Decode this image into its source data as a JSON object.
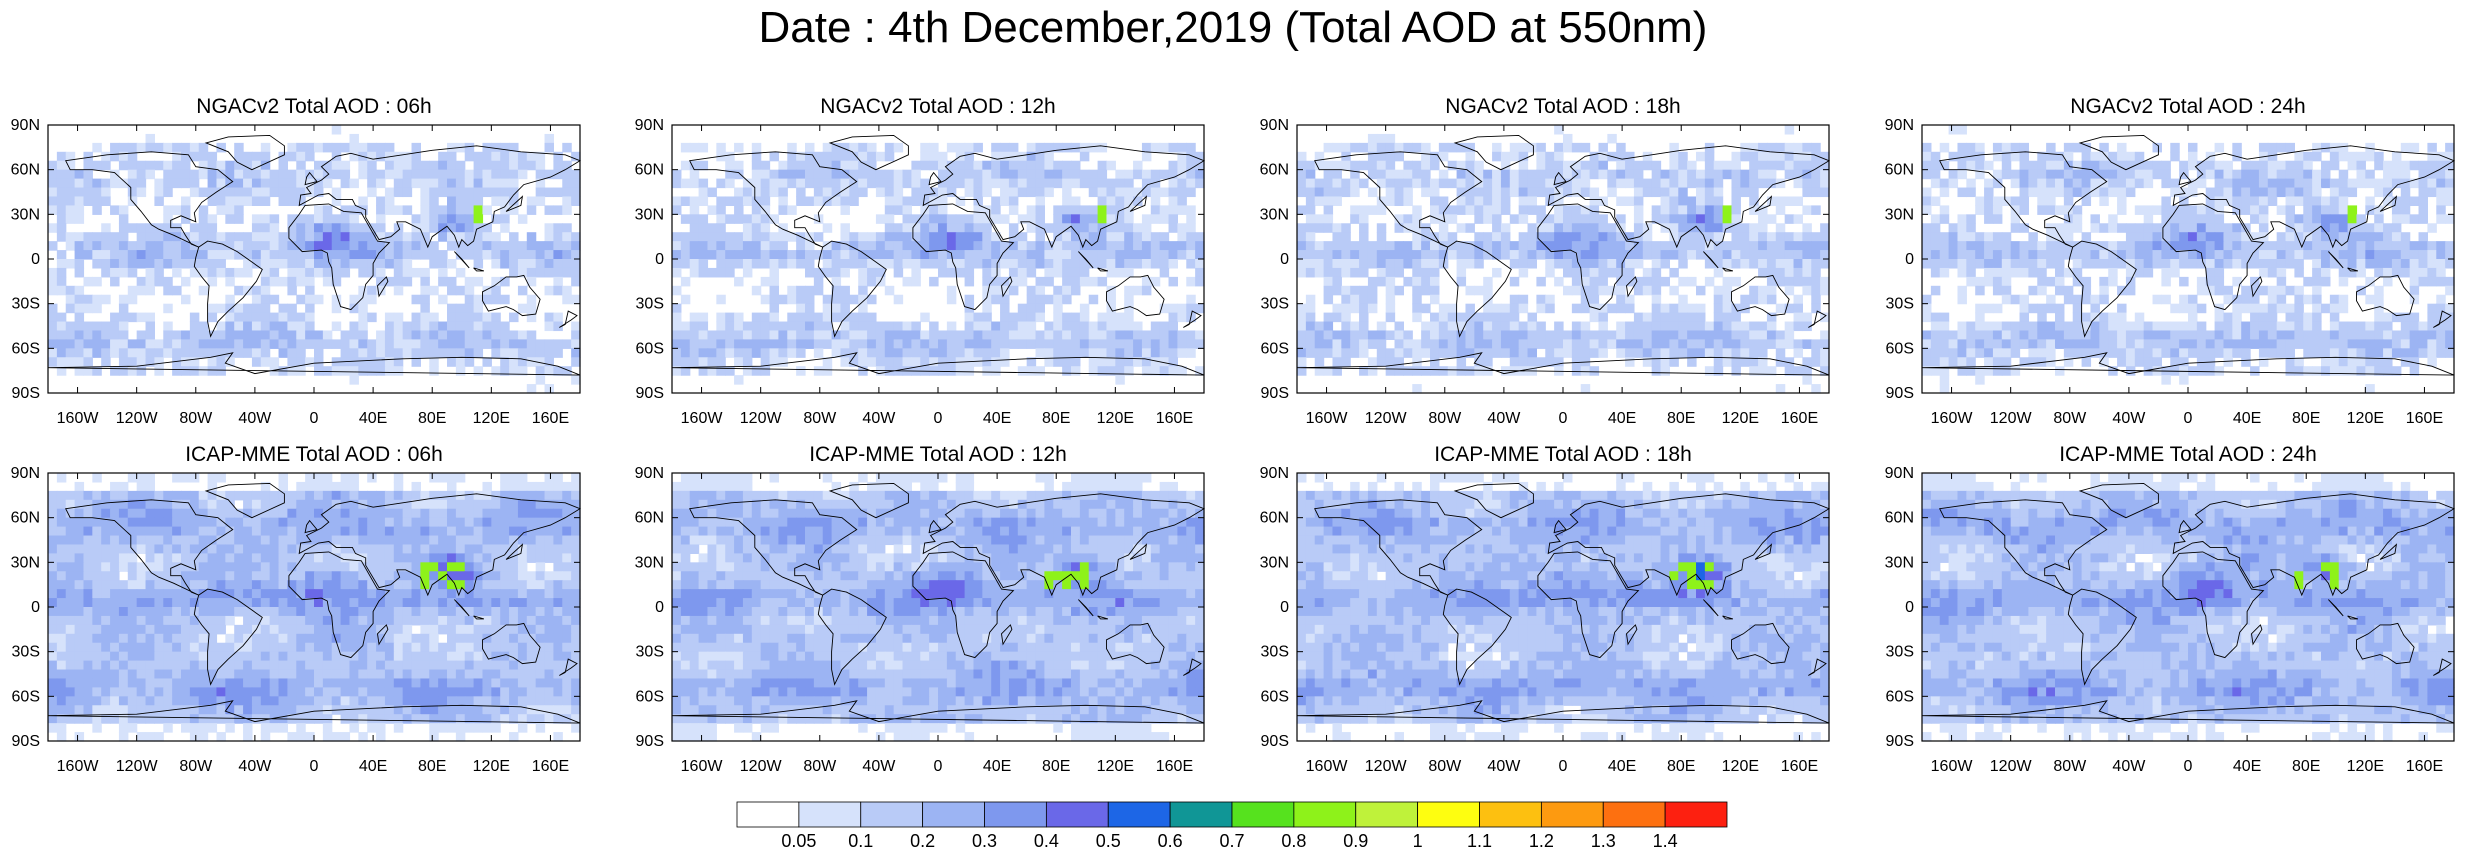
{
  "title": "Date : 4th December,2019 (Total AOD at 550nm)",
  "lon_ticks": [
    "160W",
    "120W",
    "80W",
    "40W",
    "0",
    "40E",
    "80E",
    "120E",
    "160E"
  ],
  "lat_ticks": [
    "90N",
    "60N",
    "30N",
    "0",
    "30S",
    "60S",
    "90S"
  ],
  "chart_data": [
    {
      "type": "heatmap",
      "title": "NGACv2 Total AOD : 06h",
      "model": "NGACv2",
      "lead": "06h",
      "mean_level": "low",
      "hotspot_max": 0.8
    },
    {
      "type": "heatmap",
      "title": "NGACv2 Total AOD : 12h",
      "model": "NGACv2",
      "lead": "12h",
      "mean_level": "low",
      "hotspot_max": 0.8
    },
    {
      "type": "heatmap",
      "title": "NGACv2 Total AOD : 18h",
      "model": "NGACv2",
      "lead": "18h",
      "mean_level": "low",
      "hotspot_max": 0.8
    },
    {
      "type": "heatmap",
      "title": "NGACv2 Total AOD : 24h",
      "model": "NGACv2",
      "lead": "24h",
      "mean_level": "low",
      "hotspot_max": 0.8
    },
    {
      "type": "heatmap",
      "title": "ICAP-MME Total AOD : 06h",
      "model": "ICAP-MME",
      "lead": "06h",
      "mean_level": "moderate",
      "hotspot_max": 1.0
    },
    {
      "type": "heatmap",
      "title": "ICAP-MME Total AOD : 12h",
      "model": "ICAP-MME",
      "lead": "12h",
      "mean_level": "moderate",
      "hotspot_max": 1.0
    },
    {
      "type": "heatmap",
      "title": "ICAP-MME Total AOD : 18h",
      "model": "ICAP-MME",
      "lead": "18h",
      "mean_level": "moderate",
      "hotspot_max": 1.0
    },
    {
      "type": "heatmap",
      "title": "ICAP-MME Total AOD : 24h",
      "model": "ICAP-MME",
      "lead": "24h",
      "mean_level": "moderate",
      "hotspot_max": 1.0
    }
  ],
  "colorbar": {
    "labels": [
      "0.05",
      "0.1",
      "0.2",
      "0.3",
      "0.4",
      "0.5",
      "0.6",
      "0.7",
      "0.8",
      "0.9",
      "1",
      "1.1",
      "1.2",
      "1.3",
      "1.4"
    ],
    "colors": [
      "#ffffff",
      "#d6e2fb",
      "#b9cbf7",
      "#9cb4f3",
      "#7e98ee",
      "#6a68e8",
      "#1d66e6",
      "#109696",
      "#56e21e",
      "#8ef21a",
      "#bff23a",
      "#fefe10",
      "#fdc010",
      "#fd9a10",
      "#fd7010",
      "#fd2010"
    ]
  }
}
